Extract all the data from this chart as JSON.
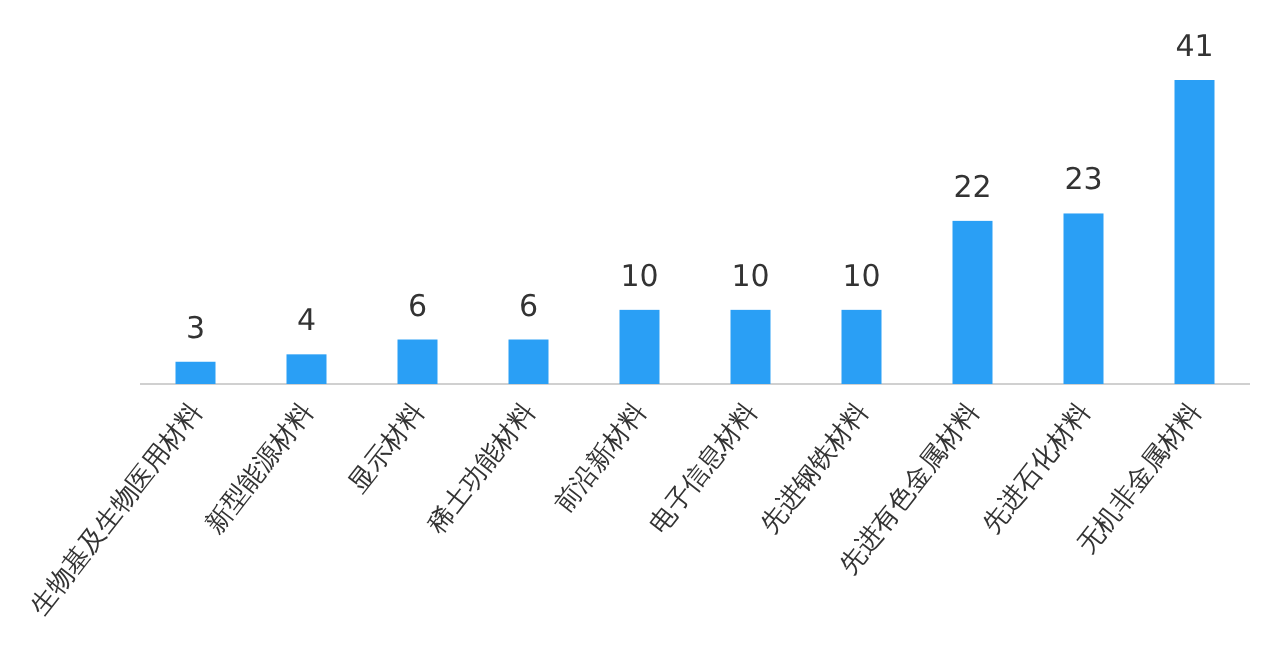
{
  "chart_data": {
    "type": "bar",
    "categories": [
      "生物基及生物医用材料",
      "新型能源材料",
      "显示材料",
      "稀土功能材料",
      "前沿新材料",
      "电子信息材料",
      "先进钢铁材料",
      "先进有色金属材料",
      "先进石化材料",
      "无机非金属材料"
    ],
    "values": [
      3,
      4,
      6,
      6,
      10,
      10,
      10,
      22,
      23,
      41
    ],
    "color": "#2a9ff5",
    "data_labels": true
  }
}
